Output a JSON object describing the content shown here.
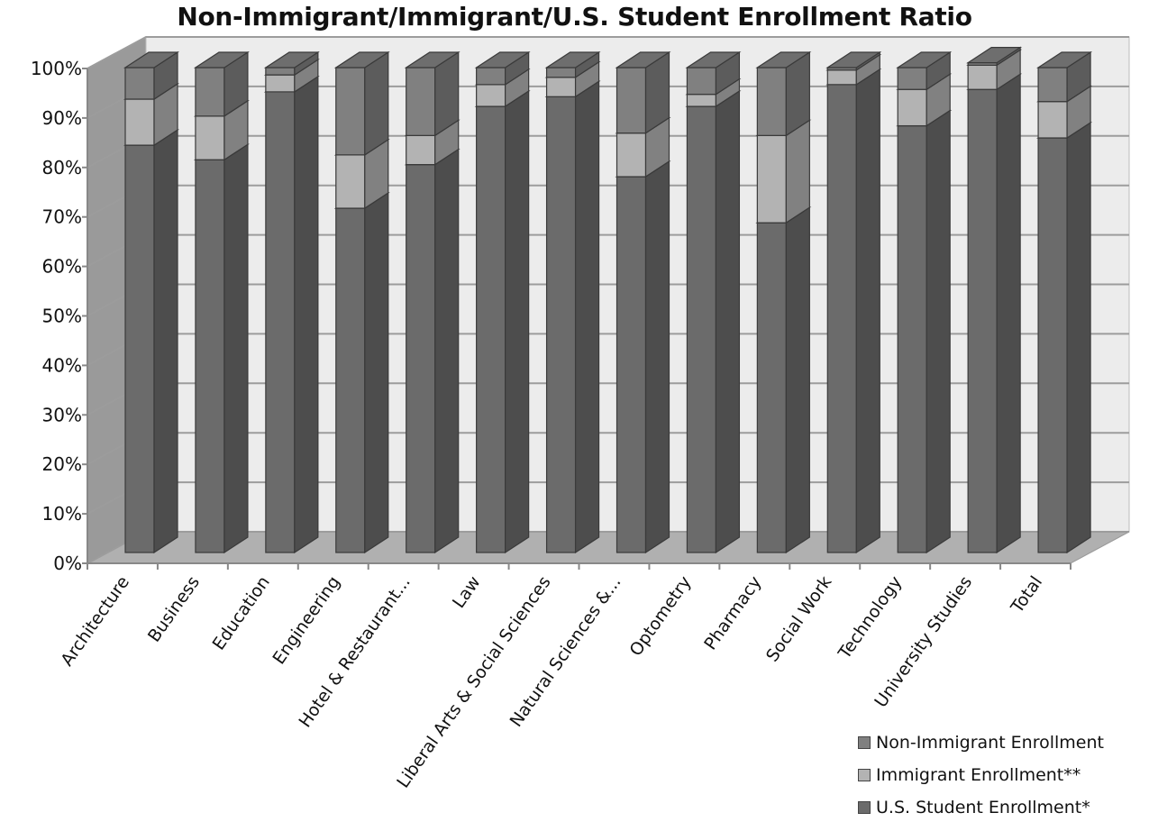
{
  "chart_data": {
    "type": "bar",
    "stacked": true,
    "percent": true,
    "three_d": true,
    "title": "Non-Immigrant/Immigrant/U.S. Student Enrollment Ratio",
    "categories": [
      "Architecture",
      "Business",
      "Education",
      "Engineering",
      "Hotel & Restaurant...",
      "Law",
      "Liberal Arts & Social Sciences",
      "Natural Sciences &...",
      "Optometry",
      "Pharmacy",
      "Social Work",
      "Technology",
      "University Studies",
      "Total"
    ],
    "series": [
      {
        "name": "U.S. Student Enrollment*",
        "color": "#6b6b6b",
        "values": [
          84,
          81,
          95,
          71,
          80,
          92,
          94,
          77.5,
          92,
          68,
          96.5,
          88,
          95.5,
          85.5
        ]
      },
      {
        "name": "Immigrant Enrollment**",
        "color": "#b3b3b3",
        "values": [
          9.5,
          9,
          3.5,
          11,
          6,
          4.5,
          4,
          9,
          2.5,
          18,
          3,
          7.5,
          5,
          7.5
        ]
      },
      {
        "name": "Non-Immigrant Enrollment",
        "color": "#808080",
        "values": [
          6.5,
          10,
          1.5,
          18,
          14,
          3.5,
          2,
          13.5,
          5.5,
          14,
          0.5,
          4.5,
          0.5,
          7
        ]
      }
    ],
    "ylim": [
      0,
      100
    ],
    "yticks": [
      "0%",
      "10%",
      "20%",
      "30%",
      "40%",
      "50%",
      "60%",
      "70%",
      "80%",
      "90%",
      "100%"
    ],
    "grid": true,
    "legend_position": "bottom-right"
  }
}
